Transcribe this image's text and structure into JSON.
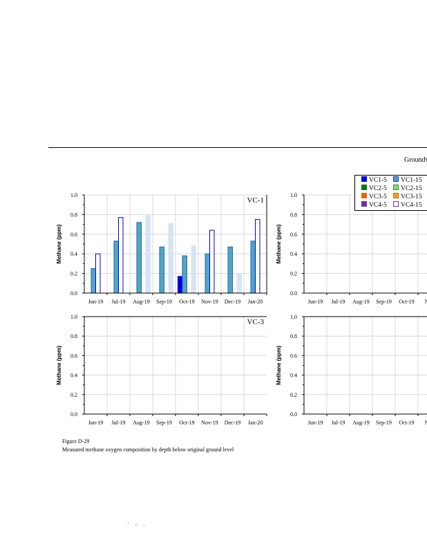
{
  "header": {
    "text": "Groundv"
  },
  "legend": [
    {
      "label": "VC1-5",
      "color": "#0000e0",
      "border": "#0000e0"
    },
    {
      "label": "VC1-15",
      "color": "#4f9ad4",
      "border": "#1f3fbf"
    },
    {
      "label": "VC2-5",
      "color": "#007a1a",
      "border": "#007a1a"
    },
    {
      "label": "VC2-15",
      "color": "#8ad47a",
      "border": "#3a8a2a"
    },
    {
      "label": "VC3-5",
      "color": "#e06a00",
      "border": "#e06a00"
    },
    {
      "label": "VC3-15",
      "color": "#f5a030",
      "border": "#c07000"
    },
    {
      "label": "VC4-5",
      "color": "#7030a0",
      "border": "#7030a0"
    },
    {
      "label": "VC4-15",
      "color": "#ffffff",
      "border": "#7030a0"
    }
  ],
  "chart_data": [
    {
      "type": "bar",
      "panel_label": "VC-1",
      "ylabel": "Methane (ppm)",
      "ylim": [
        0,
        1
      ],
      "yticks": [
        "0.0",
        "0.2",
        "0.4",
        "0.6",
        "0.8",
        "1.0"
      ],
      "categories": [
        "Jun-19",
        "Jul-19",
        "Aug-19",
        "Sep-19",
        "Oct-19",
        "Nov-19",
        "Dec-19",
        "Jan-20"
      ],
      "grid": true,
      "series": [
        {
          "name": "VC1-5",
          "color": "#0000e0",
          "border": "#0000e0",
          "values": [
            null,
            null,
            null,
            null,
            0.17,
            null,
            null,
            null
          ]
        },
        {
          "name": "VC1-15",
          "color": "#4fa6c8",
          "border": "#2a6a9a",
          "values": [
            0.25,
            0.53,
            0.72,
            0.47,
            0.38,
            0.4,
            0.47,
            0.53
          ]
        },
        {
          "name": "",
          "color": "#ffffff",
          "border": "#0000c8",
          "values": [
            0.4,
            0.77,
            null,
            null,
            null,
            0.64,
            null,
            0.75
          ]
        },
        {
          "name": "",
          "color": "#d6e4f4",
          "border": "#d6e4f4",
          "values": [
            null,
            null,
            0.79,
            0.71,
            0.48,
            null,
            0.19,
            null
          ]
        }
      ]
    },
    {
      "type": "bar",
      "panel_label": "",
      "ylabel": "Methane (ppm)",
      "ylim": [
        0,
        1
      ],
      "yticks": [
        "0.0",
        "0.2",
        "0.4",
        "0.6",
        "0.8",
        "1.0"
      ],
      "categories": [
        "Jun-19",
        "Jul-19",
        "Aug-19",
        "Sep-19",
        "Oct-19",
        "Nov"
      ],
      "grid": true,
      "series": []
    },
    {
      "type": "bar",
      "panel_label": "VC-3",
      "ylabel": "Methane (ppm)",
      "ylim": [
        0,
        1
      ],
      "yticks": [
        "0.0",
        "0.2",
        "0.4",
        "0.6",
        "0.8",
        "1.0"
      ],
      "categories": [
        "Jun-19",
        "Jul-19",
        "Aug-19",
        "Sep-19",
        "Oct-19",
        "Nov-19",
        "Dec-19",
        "Jan-20"
      ],
      "grid": true,
      "series": []
    },
    {
      "type": "bar",
      "panel_label": "",
      "ylabel": "Methane (ppm)",
      "ylim": [
        0,
        1
      ],
      "yticks": [
        "0.0",
        "0.2",
        "0.4",
        "0.6",
        "0.8",
        "1.0"
      ],
      "categories": [
        "Jun-19",
        "Jul-19",
        "Aug-19",
        "Sep-19",
        "Oct-19",
        "Nov"
      ],
      "grid": true,
      "series": []
    }
  ],
  "caption": {
    "line1": "Figure D-29",
    "line2": "Measured methane oxygen composition by depth below original ground level"
  },
  "footer": {
    "dots": "' : ."
  }
}
